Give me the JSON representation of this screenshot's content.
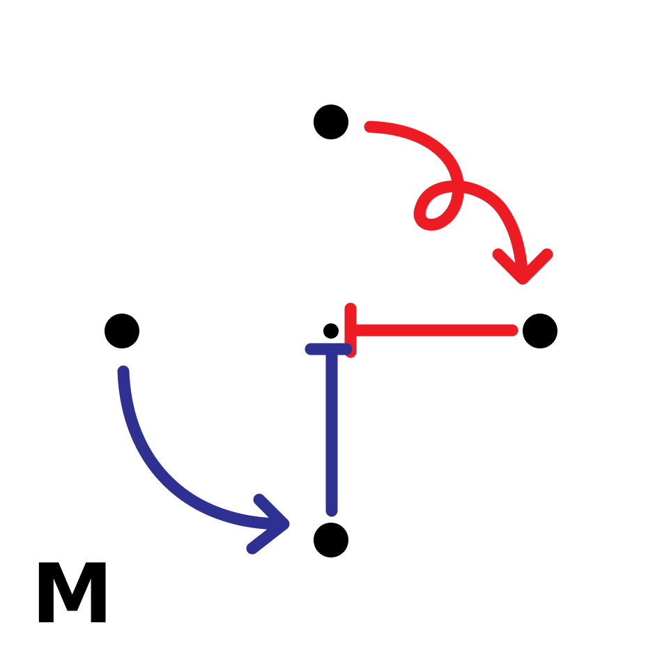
{
  "diagram": {
    "label": "M",
    "colors": {
      "background": "#ffffff",
      "node": "#000000",
      "red_path": "#ed1c24",
      "blue_path": "#2e3192"
    },
    "nodes": [
      {
        "id": "top",
        "role": "source"
      },
      {
        "id": "left",
        "role": "source"
      },
      {
        "id": "center",
        "role": "junction (small)"
      },
      {
        "id": "right",
        "role": "endpoint"
      },
      {
        "id": "bottom",
        "role": "endpoint"
      }
    ],
    "edges": [
      {
        "from": "top",
        "to": "right",
        "style": "looped curve with arrowhead",
        "color": "red_path"
      },
      {
        "from": "right",
        "to": "center",
        "style": "straight line with T-bar (inhibition)",
        "color": "red_path"
      },
      {
        "from": "left",
        "to": "bottom",
        "style": "curved arrow",
        "color": "blue_path"
      },
      {
        "from": "bottom",
        "to": "center",
        "style": "straight line with T-bar (inhibition)",
        "color": "blue_path"
      }
    ]
  }
}
